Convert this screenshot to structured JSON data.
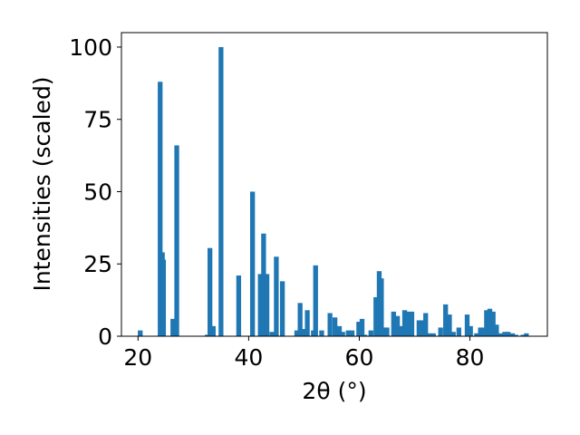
{
  "chart_data": {
    "type": "bar",
    "xlabel": "2θ (°)",
    "ylabel": "Intensities (scaled)",
    "xlim": [
      17,
      94
    ],
    "ylim": [
      0,
      105
    ],
    "xticks": [
      20,
      40,
      60,
      80
    ],
    "yticks": [
      0,
      25,
      50,
      75,
      100
    ],
    "grid": false,
    "bar_color": "#1f77b4",
    "series": [
      {
        "x": [
          20.4,
          24.0,
          24.4,
          24.6,
          26.3,
          27.0,
          32.5,
          33.0,
          33.6,
          35.0,
          38.2,
          40.7,
          42.1,
          42.7,
          43.3,
          44.2,
          45.0,
          46.1,
          48.7,
          49.3,
          49.8,
          50.6,
          51.7,
          52.1,
          53.2,
          54.7,
          55.6,
          56.4,
          57.0,
          58.0,
          58.7,
          59.9,
          60.5,
          61.0,
          62.1,
          63.0,
          63.6,
          64.0,
          64.6,
          65.0,
          66.2,
          66.9,
          67.6,
          68.2,
          68.8,
          69.5,
          70.8,
          71.4,
          72.0,
          72.6,
          73.4,
          74.7,
          75.6,
          76.3,
          77.0,
          78.0,
          79.5,
          80.1,
          81.2,
          81.9,
          82.5,
          83.0,
          83.6,
          84.2,
          84.8,
          85.5,
          86.3,
          86.9,
          87.7,
          88.3,
          89.6,
          90.2
        ],
        "values": [
          2,
          88,
          29,
          26.5,
          6,
          66,
          0.5,
          30.5,
          3.5,
          100,
          21,
          50,
          21.5,
          35.5,
          21.5,
          1.5,
          27.5,
          19,
          2,
          11.5,
          2.5,
          9,
          2,
          24.5,
          2,
          8,
          6.5,
          3.5,
          1.5,
          2,
          2,
          5,
          6,
          0.5,
          2,
          13.5,
          22.5,
          20,
          3,
          3,
          8.5,
          7,
          3.5,
          9,
          8.5,
          8.5,
          5.5,
          5.5,
          8,
          1,
          1,
          3,
          11,
          7.5,
          1.5,
          3,
          7.5,
          3.5,
          1,
          3,
          3,
          9,
          9.5,
          8.5,
          4,
          1,
          1.5,
          1.5,
          1,
          0.5,
          0.5,
          1
        ]
      }
    ]
  }
}
